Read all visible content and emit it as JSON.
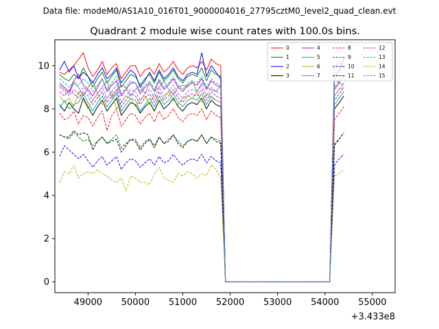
{
  "suptitle": "Data file: modeM0/AS1A10_016T01_9000004016_27795cztM0_level2_quad_clean.evt",
  "chart_data": {
    "type": "line",
    "title": "Quadrant 2 module wise count rates with 100.0s bins.",
    "xlabel": "",
    "ylabel": "",
    "x_offset_label": "+3.433e8",
    "xlim": [
      48300,
      55480
    ],
    "ylim": [
      -0.5,
      11.2
    ],
    "xticks": [
      49000,
      50000,
      51000,
      52000,
      53000,
      54000,
      55000
    ],
    "yticks": [
      0,
      2,
      4,
      6,
      8,
      10
    ],
    "x_start": 48400,
    "x_step": 100,
    "x_count": 69,
    "gap_start": 51900,
    "gap_end": 54100,
    "legend_position": "top-right",
    "legend_columns": 4,
    "series": [
      {
        "name": "0",
        "color": "#ff0000",
        "dash": "solid",
        "values": [
          9.7,
          9.6,
          9.8,
          10.0,
          10.3,
          10.6,
          9.9,
          9.5,
          9.8,
          10.2,
          9.6,
          9.9,
          10.1,
          9.4,
          9.7,
          10.0,
          10.0,
          9.5,
          9.8,
          9.9,
          9.6,
          10.1,
          9.7,
          9.9,
          10.2,
          9.8,
          9.6,
          9.9,
          10.0,
          9.9,
          10.2,
          9.8,
          10.3,
          10.1,
          10.0,
          9.9,
          10.2,
          9.9
        ]
      },
      {
        "name": "1",
        "color": "#008000",
        "dash": "solid",
        "values": [
          9.6,
          9.4,
          9.3,
          9.6,
          9.4,
          9.9,
          9.5,
          9.0,
          9.4,
          9.7,
          9.2,
          9.5,
          9.8,
          9.0,
          9.3,
          9.6,
          9.5,
          9.1,
          9.4,
          9.6,
          9.2,
          9.7,
          9.3,
          9.5,
          9.8,
          9.4,
          9.2,
          9.5,
          9.6,
          9.5,
          9.9,
          9.3,
          9.8,
          9.6,
          9.5,
          9.4,
          9.7,
          10.3
        ]
      },
      {
        "name": "2",
        "color": "#0000ff",
        "dash": "solid",
        "values": [
          9.8,
          10.2,
          9.7,
          10.0,
          9.4,
          9.7,
          9.5,
          9.2,
          9.6,
          9.9,
          9.4,
          9.6,
          9.9,
          9.2,
          9.5,
          9.8,
          9.6,
          9.0,
          9.3,
          9.7,
          9.3,
          9.8,
          9.4,
          9.6,
          9.9,
          9.5,
          9.3,
          9.6,
          9.7,
          9.6,
          10.6,
          9.5,
          10.0,
          9.7,
          9.4,
          9.5,
          9.8,
          10.4
        ]
      },
      {
        "name": "3",
        "color": "#000000",
        "dash": "solid",
        "values": [
          8.2,
          7.9,
          8.3,
          8.0,
          7.8,
          8.5,
          8.1,
          7.7,
          8.1,
          8.4,
          7.9,
          8.2,
          8.5,
          7.7,
          8.0,
          8.3,
          8.2,
          7.8,
          8.1,
          8.3,
          7.9,
          8.4,
          8.0,
          8.2,
          8.5,
          8.1,
          7.9,
          8.2,
          8.3,
          8.2,
          8.5,
          8.0,
          8.4,
          8.2,
          8.1,
          8.0,
          8.3,
          8.6
        ]
      },
      {
        "name": "4",
        "color": "#cc00cc",
        "dash": "solid",
        "values": [
          9.2,
          9.0,
          8.8,
          9.3,
          9.6,
          9.1,
          8.9,
          8.6,
          9.0,
          9.4,
          8.8,
          9.1,
          9.3,
          8.6,
          8.9,
          9.2,
          9.2,
          8.7,
          9.0,
          9.2,
          8.8,
          9.3,
          8.9,
          9.1,
          9.4,
          9.0,
          8.8,
          9.1,
          9.2,
          9.1,
          9.4,
          8.9,
          9.3,
          9.1,
          9.0,
          8.9,
          9.2,
          9.5
        ]
      },
      {
        "name": "5",
        "color": "#00b3b3",
        "dash": "solid",
        "values": [
          8.0,
          8.4,
          8.0,
          8.2,
          8.3,
          8.7,
          8.3,
          7.9,
          8.3,
          8.6,
          8.1,
          8.4,
          8.7,
          7.9,
          8.2,
          8.5,
          8.4,
          7.9,
          8.2,
          8.5,
          8.1,
          8.6,
          8.2,
          8.4,
          8.7,
          8.3,
          8.1,
          8.4,
          8.5,
          8.4,
          8.7,
          8.2,
          8.6,
          8.4,
          8.3,
          8.2,
          8.5,
          8.8
        ]
      },
      {
        "name": "6",
        "color": "#b3b300",
        "dash": "solid",
        "values": [
          8.6,
          8.3,
          8.5,
          8.1,
          8.8,
          8.4,
          8.0,
          8.4,
          8.7,
          8.2,
          8.5,
          8.8,
          8.0,
          8.3,
          8.6,
          8.5,
          8.1,
          8.4,
          8.6,
          8.2,
          8.7,
          8.3,
          8.5,
          8.8,
          8.4,
          8.2,
          8.5,
          8.6,
          8.5,
          8.8,
          8.3,
          8.7,
          8.5,
          8.4,
          8.3,
          8.6,
          8.9,
          9.0
        ]
      },
      {
        "name": "7",
        "color": "#808080",
        "dash": "solid",
        "values": [
          9.1,
          8.9,
          8.7,
          9.2,
          9.0,
          8.6,
          9.0,
          9.3,
          8.7,
          9.0,
          9.3,
          8.5,
          8.8,
          9.1,
          9.0,
          8.6,
          8.9,
          9.1,
          8.7,
          9.2,
          8.8,
          9.0,
          9.3,
          8.9,
          8.7,
          9.0,
          9.1,
          9.0,
          9.3,
          8.8,
          9.2,
          9.0,
          8.9,
          8.8,
          9.1,
          9.4,
          9.2,
          9.1
        ]
      },
      {
        "name": "8",
        "color": "#ff0000",
        "dash": "dashed",
        "values": [
          7.8,
          7.5,
          7.6,
          7.9,
          7.3,
          7.7,
          7.6,
          7.2,
          7.6,
          7.9,
          7.0,
          7.7,
          8.0,
          7.2,
          7.5,
          7.8,
          7.7,
          7.3,
          7.6,
          7.8,
          7.4,
          7.9,
          7.5,
          7.7,
          8.0,
          7.6,
          7.4,
          7.7,
          7.8,
          7.7,
          8.0,
          7.5,
          7.9,
          7.7,
          7.6,
          7.5,
          7.8,
          8.1
        ]
      },
      {
        "name": "9",
        "color": "#008000",
        "dash": "dashed",
        "values": [
          6.8,
          6.7,
          6.6,
          6.9,
          6.7,
          6.5,
          6.6,
          6.3,
          6.5,
          6.7,
          6.4,
          6.6,
          6.8,
          6.2,
          6.4,
          6.6,
          6.6,
          6.2,
          6.5,
          6.6,
          6.3,
          6.7,
          6.4,
          6.6,
          6.8,
          6.5,
          6.3,
          6.5,
          6.6,
          6.5,
          6.8,
          6.4,
          6.7,
          6.6,
          6.5,
          6.4,
          6.6,
          6.9
        ]
      },
      {
        "name": "10",
        "color": "#0000ff",
        "dash": "dashed",
        "values": [
          5.8,
          6.3,
          6.1,
          5.9,
          5.7,
          5.9,
          5.6,
          5.3,
          5.6,
          5.8,
          5.4,
          5.6,
          5.8,
          5.2,
          5.5,
          5.7,
          5.6,
          5.3,
          5.5,
          5.7,
          5.4,
          5.8,
          5.5,
          5.6,
          5.9,
          5.6,
          5.4,
          5.6,
          5.7,
          5.6,
          5.9,
          5.5,
          5.8,
          5.6,
          5.5,
          5.4,
          5.7,
          5.9
        ]
      },
      {
        "name": "11",
        "color": "#000000",
        "dash": "dashed",
        "values": [
          6.8,
          6.7,
          6.7,
          7.0,
          6.8,
          6.9,
          6.8,
          6.1,
          6.5,
          6.7,
          6.4,
          6.5,
          6.6,
          6.0,
          6.3,
          6.6,
          6.5,
          6.1,
          6.4,
          6.6,
          6.2,
          6.7,
          6.4,
          6.5,
          6.8,
          6.4,
          6.2,
          6.5,
          6.6,
          6.5,
          6.8,
          6.4,
          6.7,
          6.5,
          6.4,
          6.3,
          6.6,
          6.9
        ]
      },
      {
        "name": "12",
        "color": "#cc00cc",
        "dash": "dashed",
        "values": [
          8.8,
          8.6,
          8.9,
          8.7,
          8.5,
          8.8,
          8.6,
          8.2,
          8.5,
          8.8,
          8.3,
          8.6,
          8.9,
          8.1,
          8.4,
          8.7,
          8.6,
          8.2,
          8.5,
          8.7,
          8.3,
          8.8,
          8.4,
          8.6,
          8.9,
          8.5,
          8.3,
          8.6,
          8.7,
          8.6,
          8.9,
          8.4,
          8.8,
          8.6,
          8.5,
          8.4,
          8.7,
          9.0
        ]
      },
      {
        "name": "13",
        "color": "#00b3b3",
        "dash": "dashed",
        "values": [
          9.4,
          9.2,
          9.0,
          9.3,
          9.1,
          9.4,
          9.2,
          8.8,
          9.1,
          9.4,
          8.9,
          9.2,
          9.5,
          8.7,
          9.0,
          9.3,
          9.2,
          8.8,
          9.1,
          9.3,
          8.9,
          9.4,
          9.0,
          9.2,
          9.5,
          9.1,
          8.9,
          9.2,
          9.3,
          9.2,
          9.5,
          9.0,
          9.4,
          9.2,
          9.1,
          9.0,
          9.3,
          9.6
        ]
      },
      {
        "name": "14",
        "color": "#b3b300",
        "dash": "dashed",
        "values": [
          4.6,
          5.1,
          5.0,
          5.4,
          4.8,
          5.0,
          5.1,
          5.0,
          5.2,
          5.0,
          4.9,
          4.7,
          4.6,
          4.8,
          4.2,
          4.9,
          4.8,
          4.6,
          4.6,
          4.5,
          5.0,
          5.3,
          4.8,
          4.7,
          4.6,
          5.0,
          4.9,
          5.1,
          5.0,
          4.8,
          5.0,
          4.9,
          5.4,
          5.2,
          4.8,
          4.9,
          5.0,
          5.2
        ]
      },
      {
        "name": "15",
        "color": "#6f6fff",
        "dash": "dashed",
        "values": [
          9.0,
          8.8,
          8.6,
          8.9,
          8.7,
          9.0,
          8.8,
          8.4,
          8.7,
          9.0,
          8.5,
          8.8,
          9.1,
          8.3,
          8.6,
          8.9,
          8.8,
          8.4,
          8.7,
          8.9,
          8.5,
          9.0,
          8.6,
          8.8,
          9.1,
          8.7,
          8.5,
          8.8,
          8.9,
          8.8,
          9.1,
          8.6,
          9.0,
          8.8,
          8.7,
          8.6,
          8.9,
          9.2
        ]
      }
    ]
  }
}
